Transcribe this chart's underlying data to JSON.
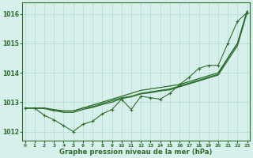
{
  "x": [
    0,
    1,
    2,
    3,
    4,
    5,
    6,
    7,
    8,
    9,
    10,
    11,
    12,
    13,
    14,
    15,
    16,
    17,
    18,
    19,
    20,
    21,
    22,
    23
  ],
  "line_measured": [
    1012.8,
    1012.8,
    1012.55,
    1012.4,
    1012.2,
    1012.0,
    1012.25,
    1012.35,
    1012.6,
    1012.75,
    1013.1,
    1012.75,
    1013.2,
    1013.15,
    1013.1,
    1013.3,
    1013.6,
    1013.85,
    1014.15,
    1014.25,
    1014.25,
    1015.0,
    1015.75,
    1016.05
  ],
  "line_avg1": [
    1012.8,
    1012.8,
    1012.8,
    1012.7,
    1012.7,
    1012.7,
    1012.8,
    1012.9,
    1013.0,
    1013.1,
    1013.2,
    1013.3,
    1013.4,
    1013.45,
    1013.5,
    1013.55,
    1013.6,
    1013.7,
    1013.8,
    1013.9,
    1014.0,
    1014.5,
    1015.0,
    1016.1
  ],
  "line_avg2": [
    1012.8,
    1012.8,
    1012.8,
    1012.75,
    1012.7,
    1012.7,
    1012.8,
    1012.85,
    1012.95,
    1013.05,
    1013.15,
    1013.2,
    1013.3,
    1013.35,
    1013.4,
    1013.45,
    1013.55,
    1013.65,
    1013.75,
    1013.85,
    1013.95,
    1014.5,
    1015.0,
    1016.1
  ],
  "line_avg3": [
    1012.8,
    1012.8,
    1012.78,
    1012.72,
    1012.65,
    1012.65,
    1012.75,
    1012.82,
    1012.92,
    1013.0,
    1013.12,
    1013.18,
    1013.28,
    1013.32,
    1013.38,
    1013.42,
    1013.52,
    1013.62,
    1013.72,
    1013.82,
    1013.92,
    1014.42,
    1014.92,
    1016.05
  ],
  "line_color": "#2d6e2d",
  "bg_color": "#d8f0ec",
  "grid_color": "#b8ddd8",
  "xlabel": "Graphe pression niveau de la mer (hPa)",
  "ylim": [
    1011.7,
    1016.4
  ],
  "yticks": [
    1012,
    1013,
    1014,
    1015,
    1016
  ],
  "xticks": [
    0,
    1,
    2,
    3,
    4,
    5,
    6,
    7,
    8,
    9,
    10,
    11,
    12,
    13,
    14,
    15,
    16,
    17,
    18,
    19,
    20,
    21,
    22,
    23
  ]
}
